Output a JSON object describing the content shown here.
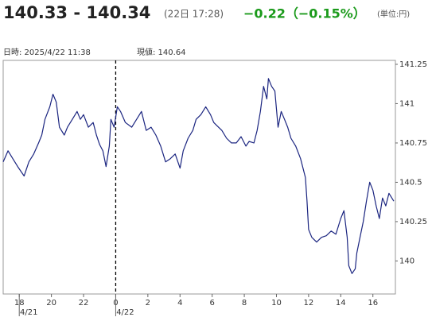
{
  "header": {
    "price": "140.33 - 140.34",
    "time": "(22日 17:28)",
    "change": "−0.22（−0.15%）",
    "unit": "(単位:円)"
  },
  "info": {
    "datetime": "日時: 2025/4/22  11:38",
    "current": "現値: 140.64"
  },
  "chart_data": {
    "type": "line",
    "color": "#1b2580",
    "x": [
      17.0,
      17.3,
      17.6,
      17.9,
      18.3,
      18.6,
      18.9,
      19.2,
      19.4,
      19.6,
      19.9,
      20.1,
      20.3,
      20.5,
      20.8,
      21.0,
      21.3,
      21.6,
      21.8,
      22.0,
      22.3,
      22.6,
      22.8,
      23.0,
      23.2,
      23.4,
      23.6,
      23.7,
      23.9,
      24.1,
      24.3,
      24.6,
      25.0,
      25.3,
      25.6,
      25.9,
      26.2,
      26.5,
      26.8,
      27.1,
      27.4,
      27.7,
      28.0,
      28.2,
      28.5,
      28.8,
      29.0,
      29.3,
      29.6,
      29.9,
      30.1,
      30.3,
      30.6,
      30.9,
      31.2,
      31.5,
      31.8,
      32.1,
      32.3,
      32.6,
      32.8,
      33.0,
      33.2,
      33.4,
      33.5,
      33.7,
      33.9,
      34.1,
      34.3,
      34.5,
      34.7,
      34.9,
      35.2,
      35.5,
      35.8,
      35.9,
      36.0,
      36.2,
      36.5,
      36.8,
      37.1,
      37.4,
      37.7,
      38.0,
      38.2,
      38.4,
      38.5,
      38.7,
      38.9,
      39.0,
      39.2,
      39.4,
      39.6,
      39.8,
      40.0,
      40.2,
      40.4,
      40.6,
      40.8,
      41.0,
      41.3
    ],
    "series": [
      {
        "values": [
          140.63,
          140.7,
          140.65,
          140.6,
          140.54,
          140.63,
          140.68,
          140.75,
          140.8,
          140.9,
          140.98,
          141.06,
          141.01,
          140.85,
          140.8,
          140.85,
          140.9,
          140.95,
          140.9,
          140.93,
          140.85,
          140.88,
          140.8,
          140.74,
          140.7,
          140.6,
          140.73,
          140.9,
          140.85,
          140.98,
          140.95,
          140.88,
          140.85,
          140.9,
          140.95,
          140.83,
          140.85,
          140.8,
          140.73,
          140.63,
          140.65,
          140.68,
          140.59,
          140.7,
          140.78,
          140.83,
          140.9,
          140.93,
          140.98,
          140.93,
          140.88,
          140.86,
          140.83,
          140.78,
          140.75,
          140.75,
          140.79,
          140.73,
          140.76,
          140.75,
          140.83,
          140.95,
          141.11,
          141.03,
          141.16,
          141.11,
          141.08,
          140.85,
          140.95,
          140.9,
          140.85,
          140.78,
          140.73,
          140.65,
          140.53,
          140.38,
          140.2,
          140.15,
          140.12,
          140.15,
          140.16,
          140.19,
          140.17,
          140.27,
          140.32,
          140.15,
          139.97,
          139.92,
          139.95,
          140.05,
          140.15,
          140.25,
          140.38,
          140.5,
          140.45,
          140.35,
          140.27,
          140.4,
          140.35,
          140.43,
          140.38
        ]
      }
    ],
    "xlim": [
      17.0,
      41.4
    ],
    "ylim": [
      139.79,
      141.275
    ],
    "xticks": [
      18,
      20,
      22,
      {
        "value": 24,
        "label": "0"
      },
      {
        "value": 26,
        "label": "2"
      },
      {
        "value": 28,
        "label": "4"
      },
      {
        "value": 30,
        "label": "6"
      },
      {
        "value": 32,
        "label": "8"
      },
      {
        "value": 34,
        "label": "10"
      },
      {
        "value": 36,
        "label": "12"
      },
      {
        "value": 38,
        "label": "14"
      },
      {
        "value": 40,
        "label": "16"
      }
    ],
    "yticks": [
      141.25,
      141,
      140.75,
      140.5,
      140.25,
      140
    ],
    "date_labels": [
      {
        "value": 18,
        "label": "4/21"
      },
      {
        "value": 24,
        "label": "4/22"
      }
    ],
    "day_divider": 24
  }
}
